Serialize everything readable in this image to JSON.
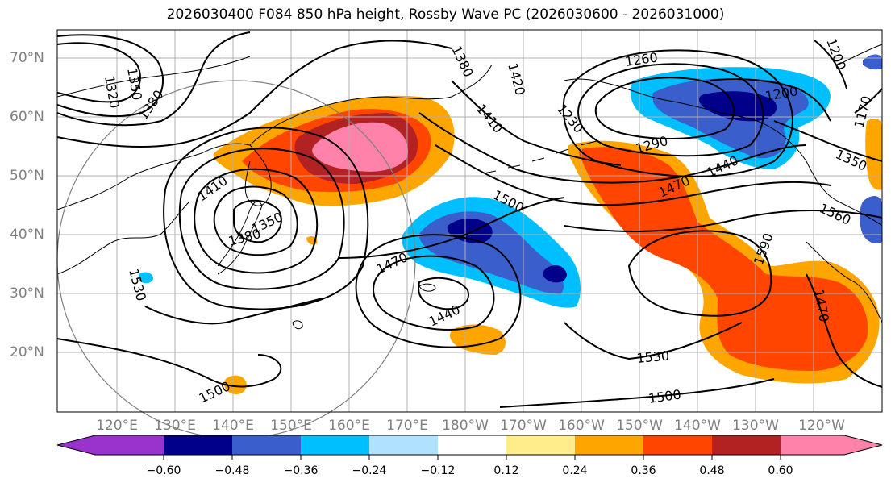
{
  "title": "2026030400 F084 850 hPa height, Rossby Wave PC (2026030600 - 2026031000)",
  "lat_labels": [
    "70°N",
    "60°N",
    "50°N",
    "40°N",
    "30°N",
    "20°N"
  ],
  "lon_labels": [
    "120°E",
    "130°E",
    "140°E",
    "150°E",
    "160°E",
    "170°E",
    "180°W",
    "170°W",
    "160°W",
    "150°W",
    "140°W",
    "130°W",
    "120°W"
  ],
  "colorbar": {
    "ticks": [
      "−0.60",
      "−0.48",
      "−0.36",
      "−0.24",
      "−0.12",
      "0.12",
      "0.24",
      "0.36",
      "0.48",
      "0.60"
    ],
    "colors": [
      "#9a32cd",
      "#00008b",
      "#3a5fcd",
      "#00bfff",
      "#b0e2ff",
      "#ffffff",
      "#ffec8b",
      "#ffa500",
      "#ff4500",
      "#b22222",
      "#ff82ab"
    ]
  },
  "contour_labels": [
    "1320",
    "1350",
    "1380",
    "1410",
    "1350",
    "1380",
    "1530",
    "1500",
    "1470",
    "1440",
    "1500",
    "1530",
    "1500",
    "1380",
    "1410",
    "1420",
    "1230",
    "1260",
    "1290",
    "1200",
    "1440",
    "1470",
    "1350",
    "1560",
    "1590",
    "1470",
    "1200",
    "1170"
  ],
  "colors": {
    "land_line": "#000000",
    "grid": "#b0b0b0",
    "contour": "#000000",
    "range_ring": "#808080"
  }
}
